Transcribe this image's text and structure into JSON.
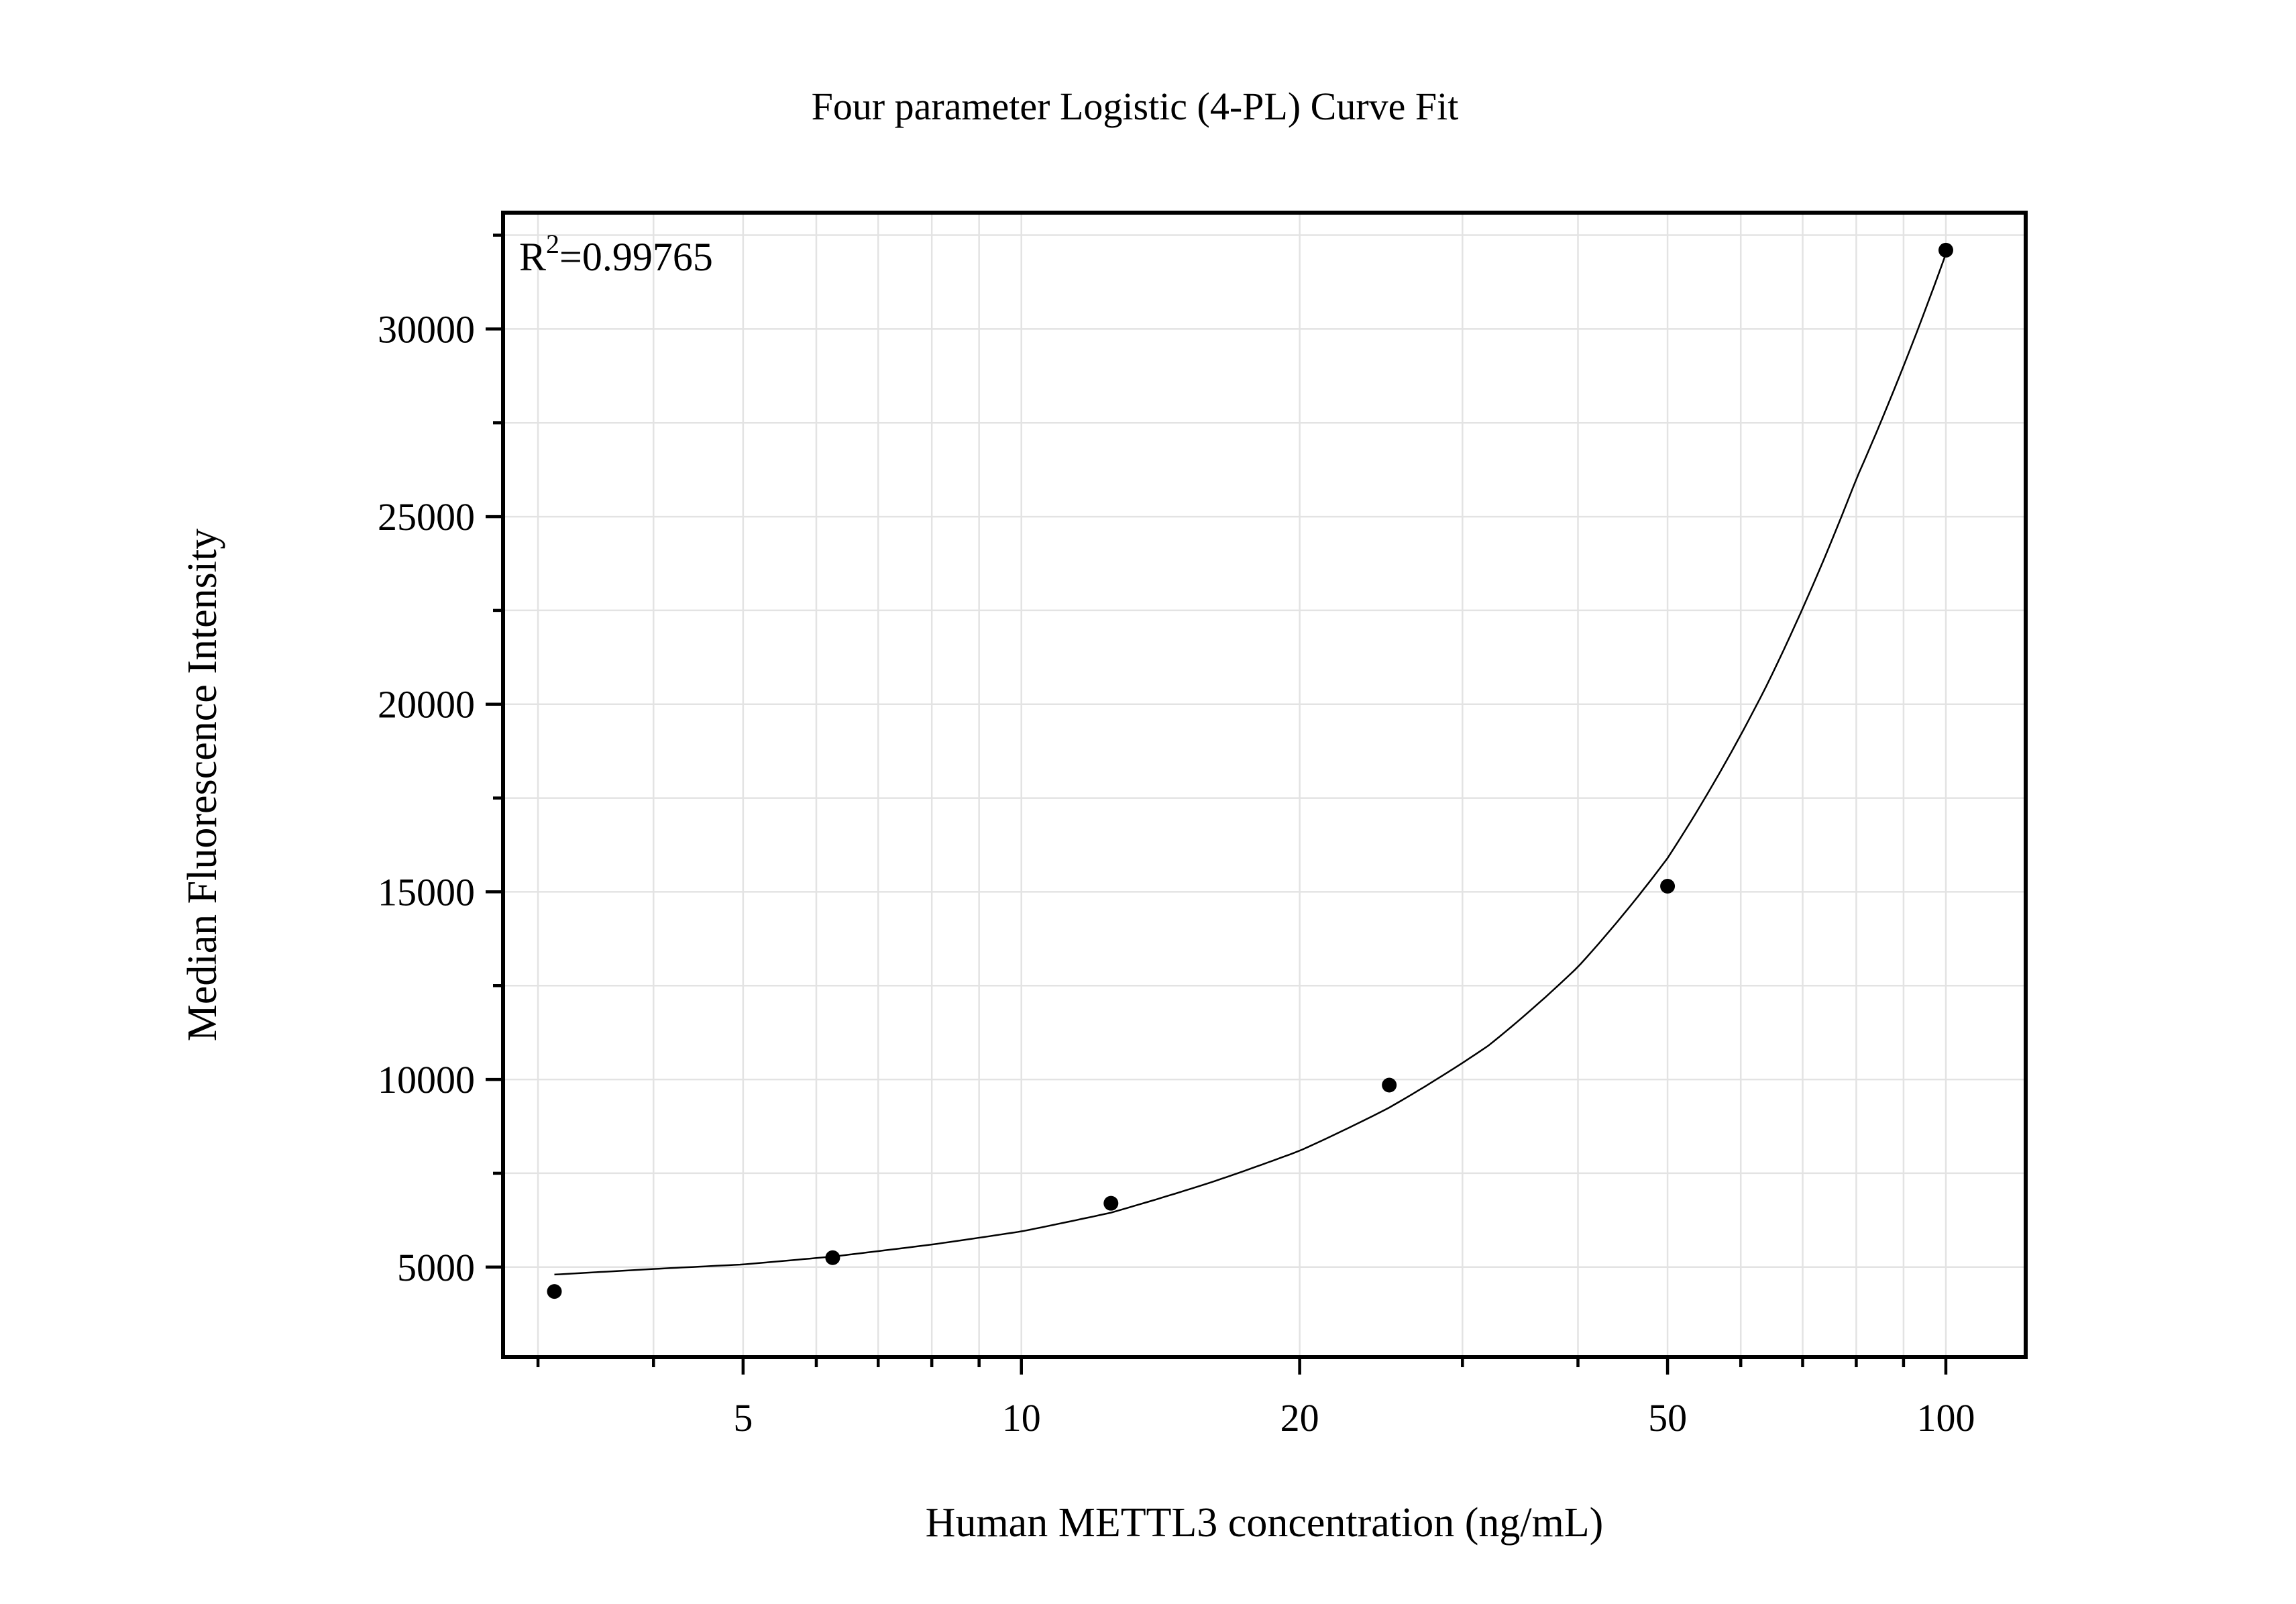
{
  "chart_data": {
    "type": "scatter",
    "title": "Four parameter Logistic (4-PL) Curve Fit",
    "xlabel": "Human METTL3 concentration (ng/mL)",
    "ylabel": "Median Fluorescence Intensity",
    "x_scale": "log",
    "xlim": [
      2.75,
      122
    ],
    "ylim": [
      2600,
      33100
    ],
    "x_ticks": [
      5,
      10,
      20,
      50,
      100
    ],
    "x_tick_labels": [
      "5",
      "10",
      "20",
      "50",
      "100"
    ],
    "y_ticks": [
      5000,
      10000,
      15000,
      20000,
      25000,
      30000
    ],
    "y_tick_labels": [
      "5000",
      "10000",
      "15000",
      "20000",
      "25000",
      "30000"
    ],
    "grid": true,
    "annotation": {
      "r2_label": "R",
      "r2_sup": "2",
      "r2_value": "=0.99765"
    },
    "series": [
      {
        "type": "scatter",
        "x": [
          3.125,
          6.25,
          12.5,
          25,
          50,
          100
        ],
        "y": [
          4350,
          5250,
          6700,
          9850,
          15150,
          32100
        ]
      },
      {
        "type": "line",
        "x": [
          3.125,
          4.0,
          5.0,
          6.25,
          8.0,
          10.0,
          12.5,
          16.0,
          20.0,
          25.0,
          32.0,
          40.0,
          50.0,
          64.0,
          80.0,
          100.0
        ],
        "y": [
          4800,
          4950,
          5070,
          5280,
          5600,
          5950,
          6450,
          7250,
          8100,
          9250,
          10900,
          13000,
          15900,
          20500,
          26000,
          32000
        ]
      }
    ]
  }
}
